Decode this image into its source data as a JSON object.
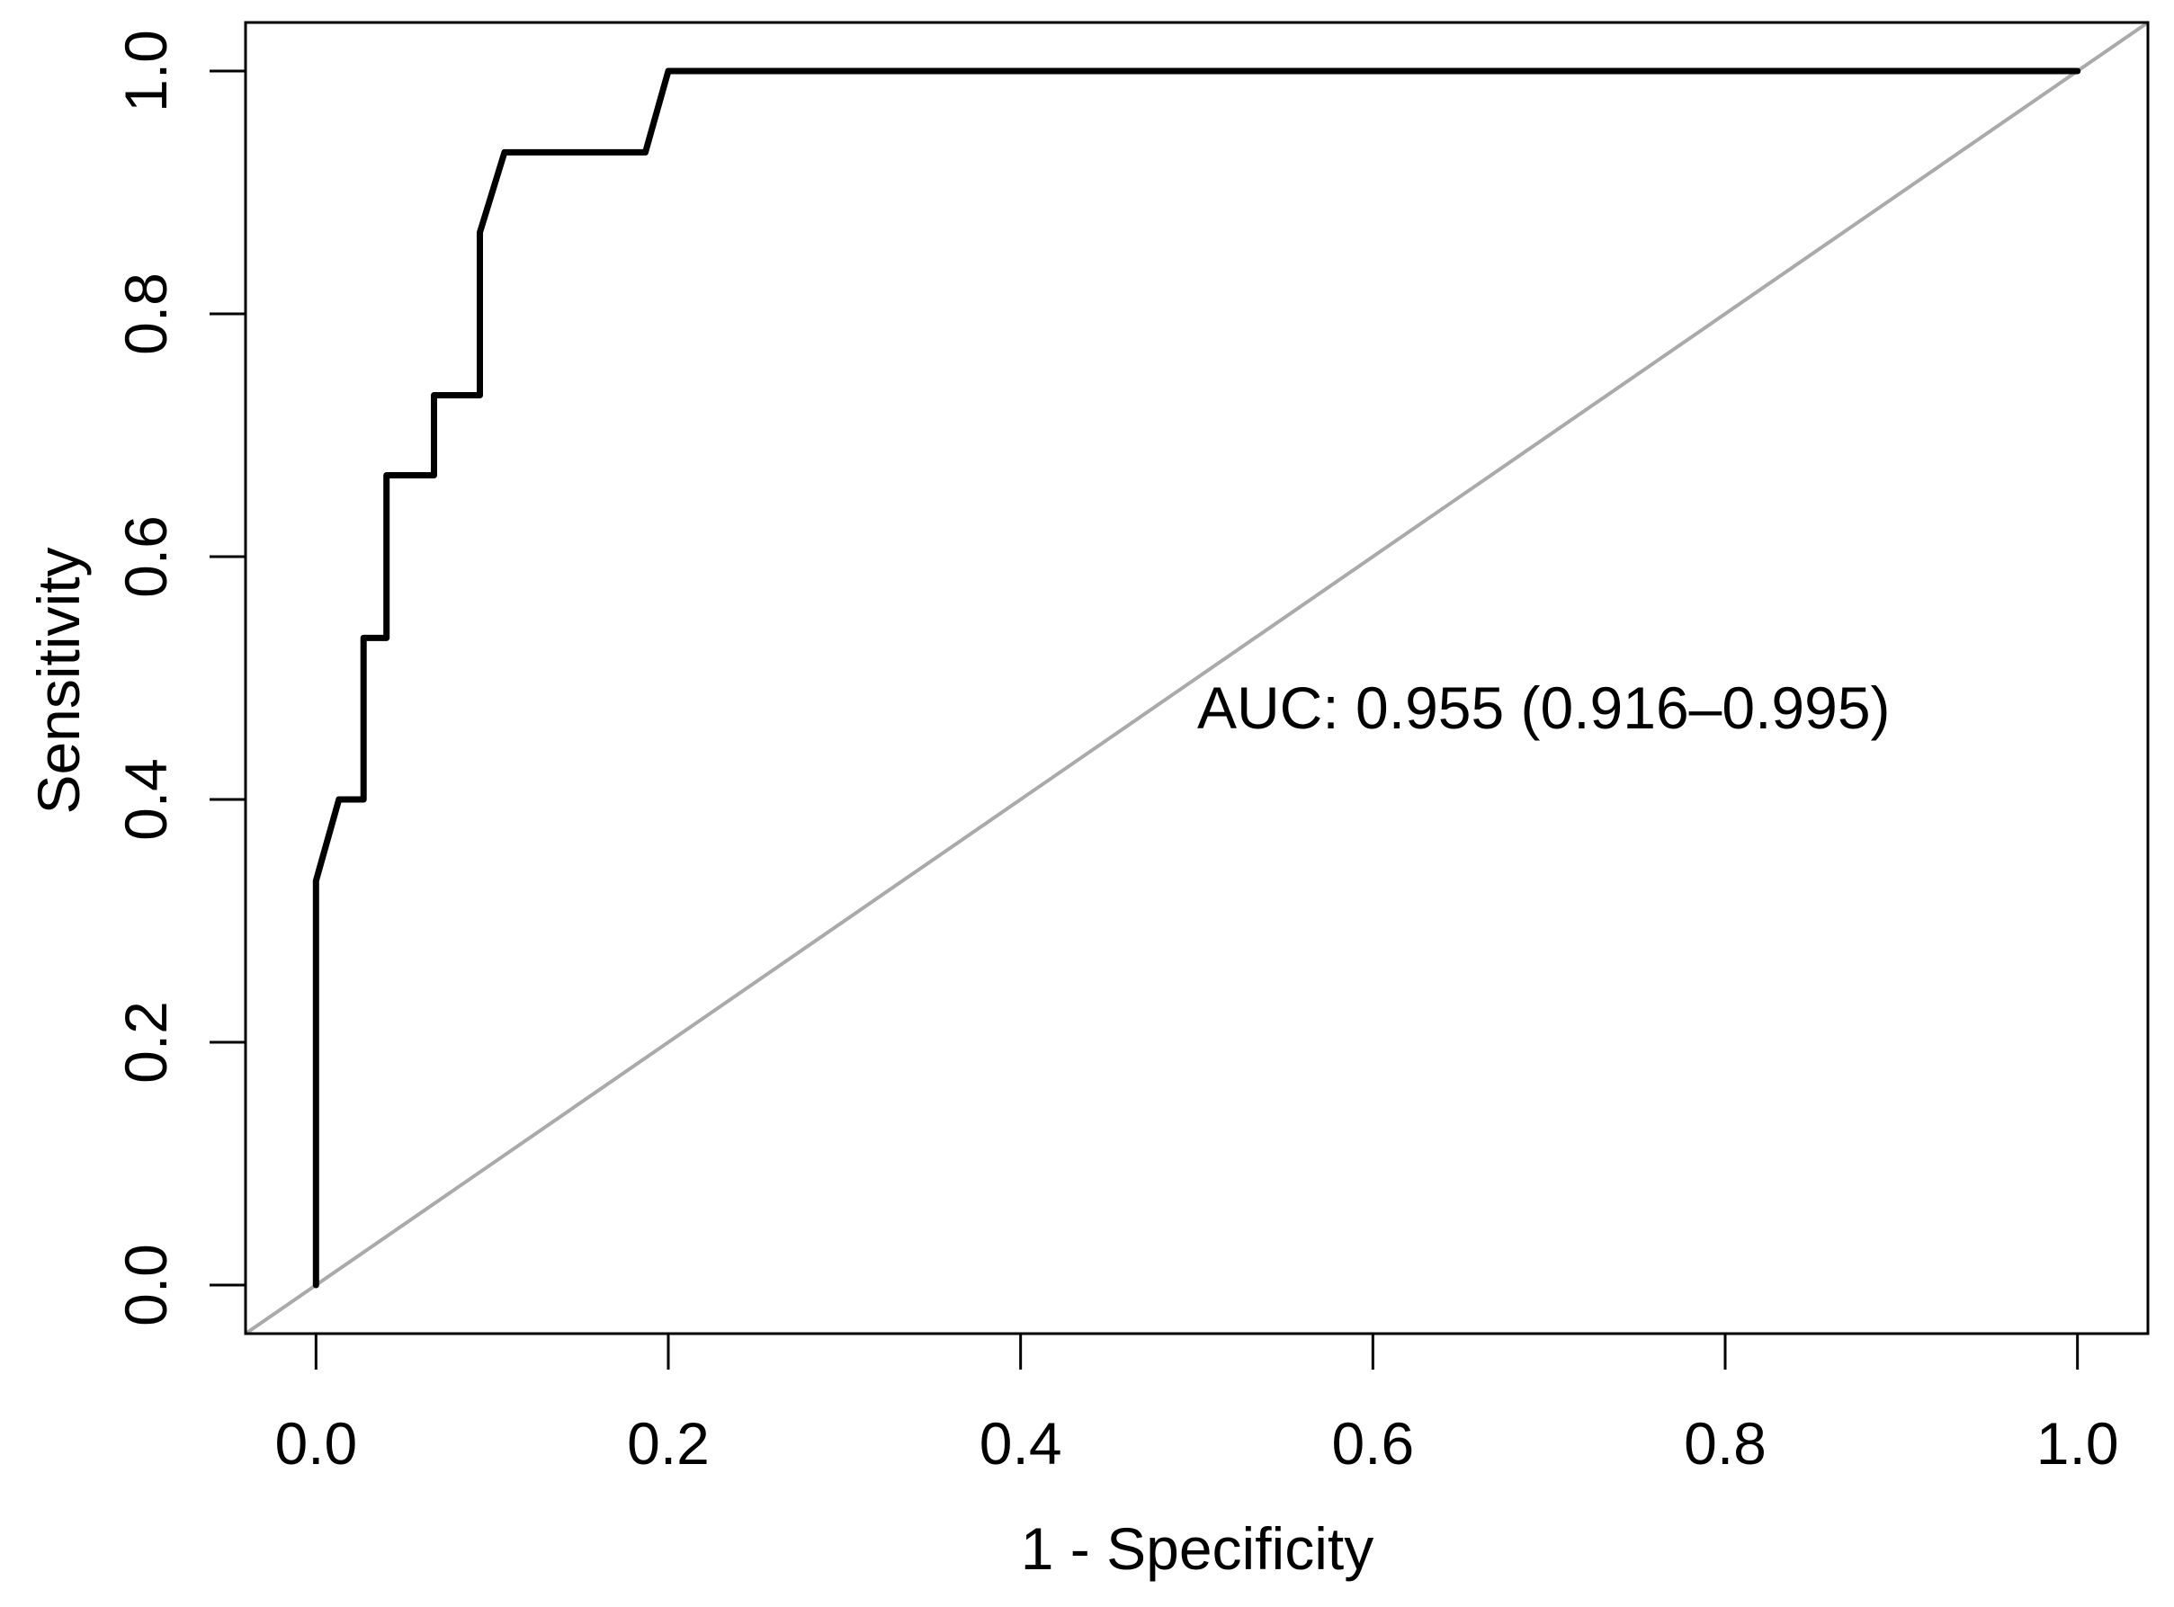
{
  "chart_data": {
    "type": "line",
    "subtype": "roc-curve",
    "title": "",
    "xlabel": "1 - Specificity",
    "ylabel": "Sensitivity",
    "xlim": [
      0,
      1
    ],
    "ylim": [
      0,
      1
    ],
    "x_ticks": [
      0.0,
      0.2,
      0.4,
      0.6,
      0.8,
      1.0
    ],
    "y_ticks": [
      0.0,
      0.2,
      0.4,
      0.6,
      0.8,
      1.0
    ],
    "tick_decimals": 1,
    "grid": false,
    "legend": "none",
    "colors": {
      "curve": "#000000",
      "reference_line": "#aaaaaa",
      "axis": "#000000",
      "background": "#ffffff"
    },
    "series": [
      {
        "name": "ROC curve",
        "points": [
          [
            0.0,
            0.0
          ],
          [
            0.0,
            0.333
          ],
          [
            0.013,
            0.4
          ],
          [
            0.027,
            0.4
          ],
          [
            0.027,
            0.533
          ],
          [
            0.04,
            0.533
          ],
          [
            0.04,
            0.667
          ],
          [
            0.067,
            0.667
          ],
          [
            0.067,
            0.733
          ],
          [
            0.093,
            0.733
          ],
          [
            0.093,
            0.867
          ],
          [
            0.107,
            0.933
          ],
          [
            0.187,
            0.933
          ],
          [
            0.2,
            1.0
          ],
          [
            1.0,
            1.0
          ]
        ]
      }
    ],
    "reference_line": {
      "name": "chance diagonal",
      "from": [
        0,
        0
      ],
      "to": [
        1,
        1
      ],
      "extends_to_plot_corners": true
    },
    "annotation": {
      "text": "AUC: 0.955 (0.916–0.995)",
      "x": 0.5,
      "y": 0.5
    },
    "auc": {
      "value": 0.955,
      "ci_low": 0.916,
      "ci_high": 0.995
    }
  }
}
